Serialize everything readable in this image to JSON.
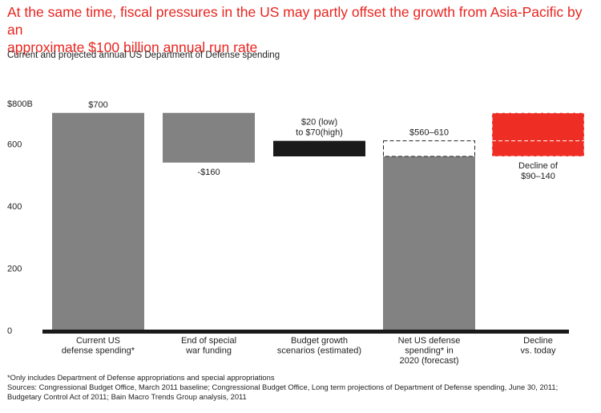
{
  "headline_lines": [
    "At the same time, fiscal pressures in the US may partly offset the growth from Asia-Pacific by an",
    "approximate $100 billion annual run rate"
  ],
  "subtitle": "Current and projected annual US Department of Defense spending",
  "footnotes": [
    "*Only includes Department of Defense appropriations and special appropriations",
    "Sources: Congressional Budget Office, March 2011 baseline; Congressional Budget Office, Long term projections of Department of Defense spending, June 30, 2011;",
    "Budgetary Control Act of 2011; Bain Macro Trends Group analysis, 2011"
  ],
  "colors": {
    "gray": "#828282",
    "black": "#1a1a1a",
    "red": "#ee2e24",
    "headline": "#e8251f"
  },
  "chart_data": {
    "type": "waterfall",
    "title": "Current and projected annual US Department of Defense spending",
    "ylim": [
      0,
      800
    ],
    "y_ticks": [
      {
        "value": 0,
        "label": "0"
      },
      {
        "value": 200,
        "label": "200"
      },
      {
        "value": 400,
        "label": "400"
      },
      {
        "value": 600,
        "label": "600"
      },
      {
        "value": 800,
        "label": "$800B"
      }
    ],
    "bars": [
      {
        "id": "current",
        "category_lines": [
          "Current US",
          "defense spending*"
        ],
        "base": 0,
        "top": 700,
        "style": "gray",
        "label_lines": [
          "$700"
        ],
        "label_position": "above"
      },
      {
        "id": "war-funding",
        "category_lines": [
          "End of special",
          "war funding"
        ],
        "base": 540,
        "top": 700,
        "style": "gray",
        "label_lines": [
          "-$160"
        ],
        "label_position": "below"
      },
      {
        "id": "growth",
        "category_lines": [
          "Budget growth",
          "scenarios (estimated)"
        ],
        "base": 560,
        "top": 610,
        "style": "black",
        "label_lines": [
          "$20 (low)",
          "to $70(high)"
        ],
        "label_position": "above"
      },
      {
        "id": "net-2020",
        "category_lines": [
          "Net US defense",
          "spending* in",
          "2020 (forecast)"
        ],
        "base": 0,
        "top": 560,
        "range_top": 610,
        "style": "gray-dashed-range",
        "label_lines": [
          "$560–610"
        ],
        "label_position": "above"
      },
      {
        "id": "decline",
        "category_lines": [
          "Decline",
          "vs. today"
        ],
        "base": 560,
        "top": 700,
        "mid": 610,
        "style": "red-dashed",
        "label_lines": [
          "Decline of",
          "$90–140"
        ],
        "label_position": "below"
      }
    ]
  }
}
